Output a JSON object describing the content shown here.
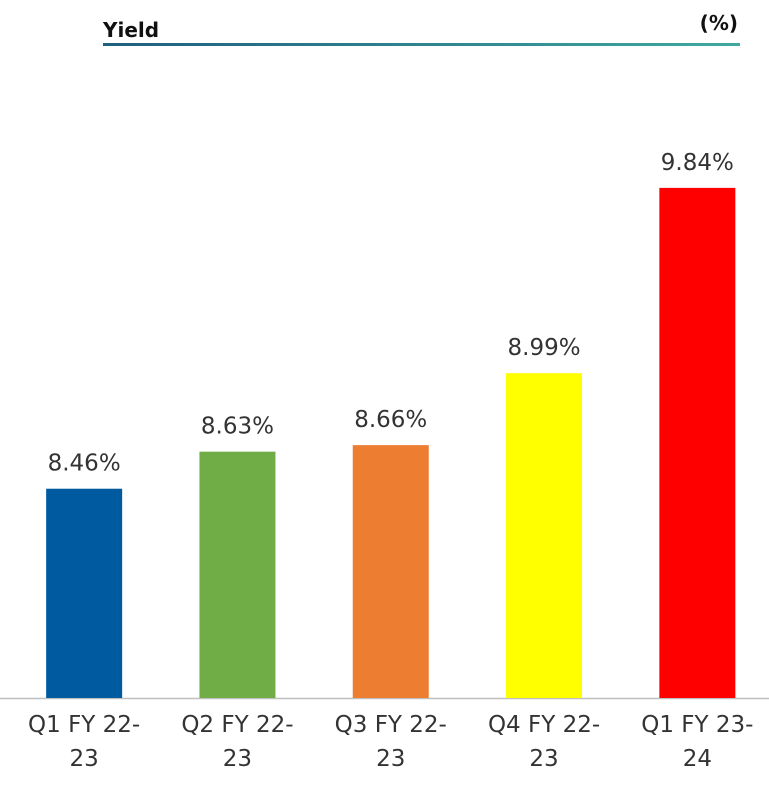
{
  "chart_data": {
    "type": "bar",
    "title": "Yield",
    "unit_label": "(%)",
    "categories": [
      "Q1 FY 22-23",
      "Q2 FY 22-23",
      "Q3 FY 22-23",
      "Q4 FY 22-23",
      "Q1 FY 23-24"
    ],
    "values": [
      8.46,
      8.63,
      8.66,
      8.99,
      9.84
    ],
    "value_labels": [
      "8.46%",
      "8.63%",
      "8.66%",
      "8.99%",
      "9.84%"
    ],
    "colors": [
      "#005aa0",
      "#70ad47",
      "#ed7d31",
      "#ffff00",
      "#ff0000"
    ],
    "ylim": [
      7.5,
      10
    ]
  }
}
